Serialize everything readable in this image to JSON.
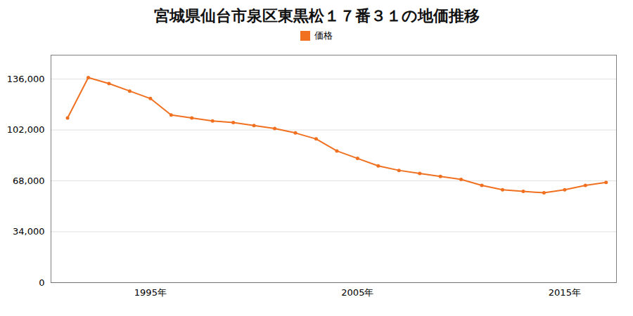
{
  "chart_data": {
    "type": "line",
    "title": "宮城県仙台市泉区東黒松１７番３１の地価推移",
    "x": [
      1991,
      1992,
      1993,
      1994,
      1995,
      1996,
      1997,
      1998,
      1999,
      2000,
      2001,
      2002,
      2003,
      2004,
      2005,
      2006,
      2007,
      2008,
      2009,
      2010,
      2011,
      2012,
      2013,
      2014,
      2015,
      2016,
      2017
    ],
    "series": [
      {
        "name": "価格",
        "color": "#f07020",
        "marker": "circle",
        "values": [
          110000,
          137000,
          133000,
          128000,
          123000,
          112000,
          110000,
          108000,
          107000,
          105000,
          103000,
          100000,
          96000,
          88000,
          83000,
          78000,
          75000,
          73000,
          71000,
          69000,
          65000,
          62000,
          61000,
          60000,
          62000,
          65000,
          67000
        ]
      }
    ],
    "xlim": [
      1990.2,
      2017.5
    ],
    "xticks": [
      {
        "value": 1995,
        "label": "1995年"
      },
      {
        "value": 2005,
        "label": "2005年"
      },
      {
        "value": 2015,
        "label": "2015年"
      }
    ],
    "ylim": [
      0,
      152000
    ],
    "yticks": [
      0,
      {
        "value": 34000,
        "label": "34,000"
      },
      {
        "value": 68000,
        "label": "68,000"
      },
      {
        "value": 102000,
        "label": "102,000"
      },
      {
        "value": 136000,
        "label": "136,000"
      }
    ],
    "grid": true,
    "legend": "top"
  }
}
